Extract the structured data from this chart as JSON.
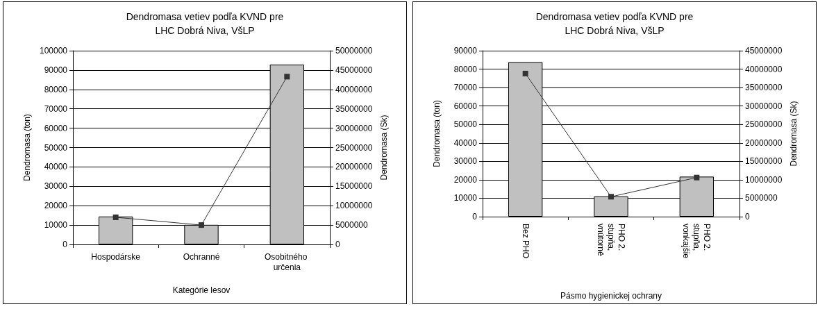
{
  "chart_data": [
    {
      "type": "bar",
      "title": "Dendromasa vetiev podľa KVND pre\nLHC Dobrá Niva, VšLP",
      "xlabel": "Kategórie lesov",
      "ylabel": "Dendromasa (ton)",
      "y2label": "Dendromasa (Sk)",
      "categories": [
        "Hospodárske",
        "Ochranné",
        "Osobitného určenia"
      ],
      "series": [
        {
          "color": "#c0c0c0",
          "values": [
            14400,
            10100,
            92800
          ]
        },
        {
          "type": "line",
          "axis": "y2",
          "color": "#333333",
          "values": [
            7000000,
            5000000,
            43300000
          ]
        }
      ],
      "ylim": [
        0,
        100000
      ],
      "yticks": [
        0,
        10000,
        20000,
        30000,
        40000,
        50000,
        60000,
        70000,
        80000,
        90000,
        100000
      ],
      "y2lim": [
        0,
        50000000
      ],
      "y2ticks": [
        0,
        5000000,
        10000000,
        15000000,
        20000000,
        25000000,
        30000000,
        35000000,
        40000000,
        45000000,
        50000000
      ],
      "grid": "y",
      "marker": "square",
      "line_style": "solid"
    },
    {
      "type": "bar",
      "title": "Dendromasa vetiev podľa KVND pre\nLHC Dobrá Niva, VšLP",
      "xlabel": "Pásmo hygienickej ochrany",
      "ylabel": "Dendromasa (ton)",
      "y2label": "Dendromasa (Sk)",
      "categories": [
        "Bez PHO",
        "PHO 2. stupňa, vnútorné",
        "PHO 2. stupňa, vonkajšie"
      ],
      "series": [
        {
          "color": "#c0c0c0",
          "values": [
            83800,
            11000,
            21700
          ]
        },
        {
          "type": "line",
          "axis": "y2",
          "color": "#333333",
          "values": [
            38800000,
            5400000,
            10600000
          ]
        }
      ],
      "ylim": [
        0,
        90000
      ],
      "yticks": [
        0,
        10000,
        20000,
        30000,
        40000,
        50000,
        60000,
        70000,
        80000,
        90000
      ],
      "y2lim": [
        0,
        45000000
      ],
      "y2ticks": [
        0,
        5000000,
        10000000,
        15000000,
        20000000,
        25000000,
        30000000,
        35000000,
        40000000,
        45000000
      ],
      "grid": "y",
      "marker": "square",
      "line_style": "solid"
    }
  ]
}
